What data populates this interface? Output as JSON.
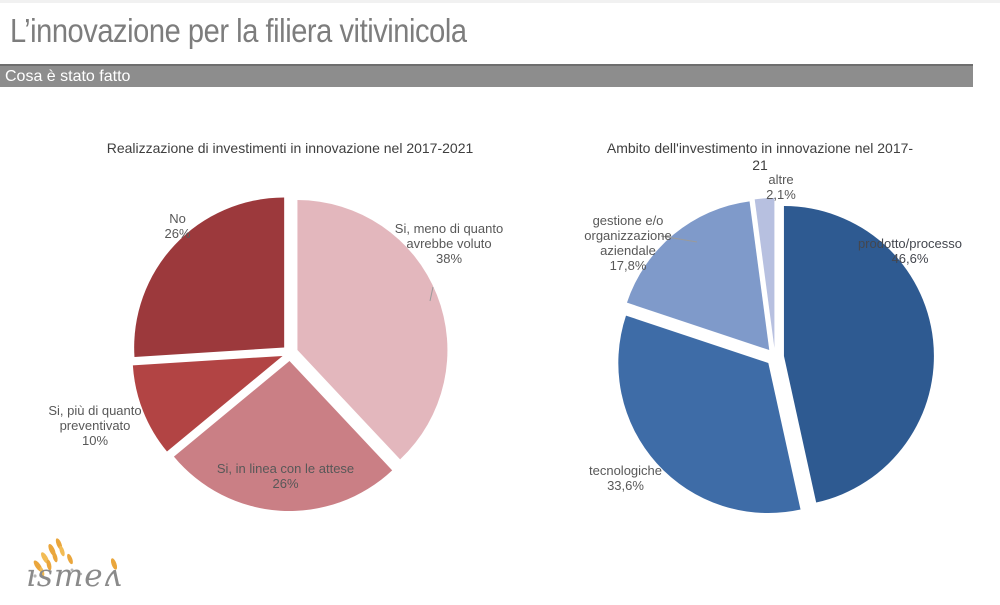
{
  "header": {
    "title": "L’innovazione per la filiera vitivinicola",
    "subtitle_bar": "Cosa è stato fatto"
  },
  "chart_data": [
    {
      "type": "pie",
      "title": "Realizzazione di investimenti in innovazione nel 2017-2021",
      "unit": "%",
      "direction": "clockwise",
      "start_angle_deg": 0,
      "exploded": true,
      "legend_position": "labels-on-chart",
      "slices": [
        {
          "name": "Si, meno di quanto avrebbe voluto",
          "value": 38,
          "value_label": "38%",
          "color": "#e3b7bd"
        },
        {
          "name": "Si, in linea con le attese",
          "value": 26,
          "value_label": "26%",
          "color": "#ca7f85"
        },
        {
          "name": "Si, più di quanto preventivato",
          "value": 10,
          "value_label": "10%",
          "color": "#b24444"
        },
        {
          "name": "No",
          "value": 26,
          "value_label": "26%",
          "color": "#9c393c"
        }
      ]
    },
    {
      "type": "pie",
      "title": "Ambito dell'investimento in innovazione nel 2017-21",
      "unit": "%",
      "direction": "clockwise",
      "start_angle_deg": 0,
      "exploded": true,
      "legend_position": "labels-on-chart",
      "slices": [
        {
          "name": "prodotto/processo",
          "value": 46.6,
          "value_label": "46,6%",
          "color": "#2e5a91"
        },
        {
          "name": "tecnologiche",
          "value": 33.6,
          "value_label": "33,6%",
          "color": "#3e6ca7"
        },
        {
          "name": "gestione e/o organizzazione aziendale",
          "value": 17.8,
          "value_label": "17,8%",
          "color": "#7f9aca"
        },
        {
          "name": "altre",
          "value": 2.1,
          "value_label": "2,1%",
          "color": "#b7c0e0"
        }
      ]
    }
  ],
  "logo": {
    "text": "ısmeʌ",
    "grain_color": "#eaa63c"
  }
}
